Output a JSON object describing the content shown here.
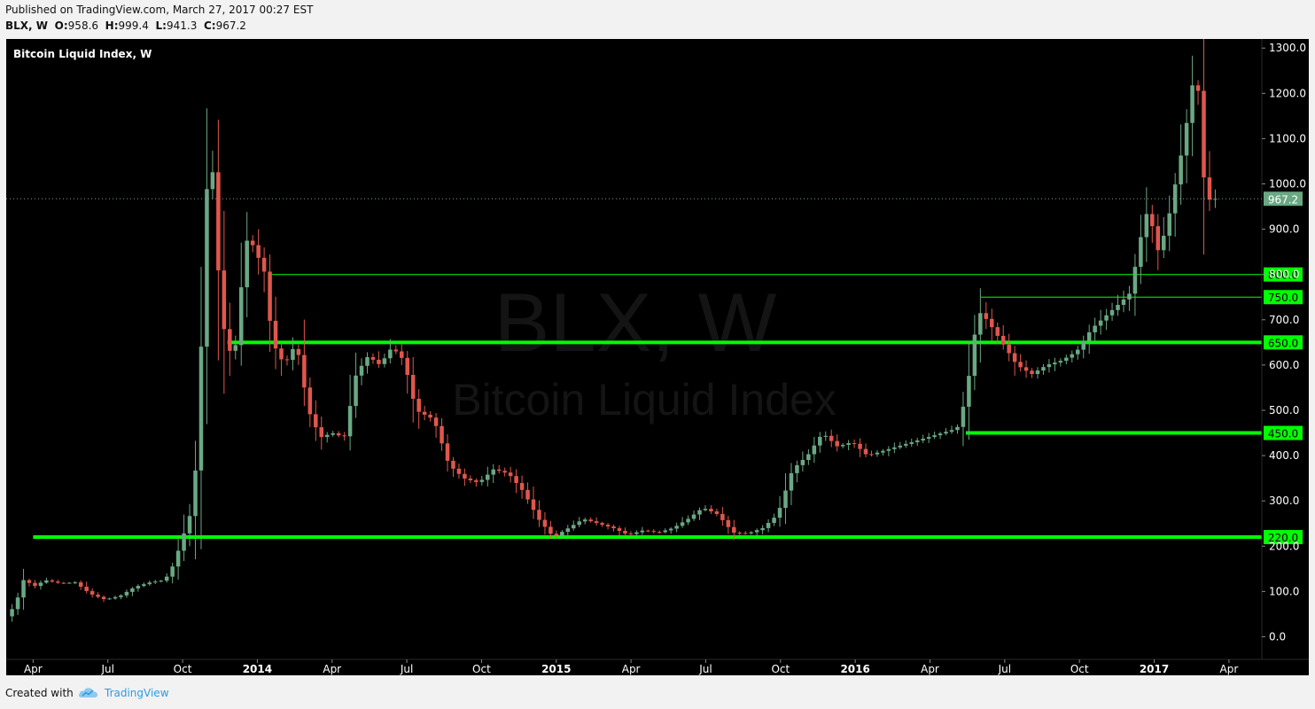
{
  "header": {
    "published": "Published on TradingView.com, March 27, 2017 00:27 EST",
    "symbol": "BLX, W",
    "o_label": "O:",
    "o_value": "958.6",
    "h_label": "H:",
    "h_value": "999.4",
    "l_label": "L:",
    "l_value": "941.3",
    "c_label": "C:",
    "c_value": "967.2"
  },
  "footer": {
    "created_with": "Created with",
    "brand": "TradingView",
    "logo_icon": "tradingview-cloud-icon"
  },
  "colors": {
    "background": "#000000",
    "up": "#6aa884",
    "down": "#e0564d",
    "level": "#00ff00",
    "level_label_bg": "#00ff00",
    "last_price_bg": "#6aa884",
    "axis_text": "#ffffff"
  },
  "chart_data": {
    "type": "candlestick",
    "title": "Bitcoin Liquid Index, W",
    "watermark_symbol": "BLX, W",
    "watermark_name": "Bitcoin Liquid Index",
    "last_price": "967.2",
    "ylim": [
      -50,
      1320
    ],
    "y_ticks": [
      "0.0",
      "100.0",
      "200.0",
      "300.0",
      "400.0",
      "500.0",
      "600.0",
      "700.0",
      "800.0",
      "900.0",
      "1000.0",
      "1100.0",
      "1200.0",
      "1300.0"
    ],
    "x_labels": [
      {
        "label": "Apr",
        "t": 2013.25,
        "bold": false
      },
      {
        "label": "Jul",
        "t": 2013.5,
        "bold": false
      },
      {
        "label": "Oct",
        "t": 2013.75,
        "bold": false
      },
      {
        "label": "2014",
        "t": 2014.0,
        "bold": true
      },
      {
        "label": "Apr",
        "t": 2014.25,
        "bold": false
      },
      {
        "label": "Jul",
        "t": 2014.5,
        "bold": false
      },
      {
        "label": "Oct",
        "t": 2014.75,
        "bold": false
      },
      {
        "label": "2015",
        "t": 2015.0,
        "bold": true
      },
      {
        "label": "Apr",
        "t": 2015.25,
        "bold": false
      },
      {
        "label": "Jul",
        "t": 2015.5,
        "bold": false
      },
      {
        "label": "Oct",
        "t": 2015.75,
        "bold": false
      },
      {
        "label": "2016",
        "t": 2016.0,
        "bold": true
      },
      {
        "label": "Apr",
        "t": 2016.25,
        "bold": false
      },
      {
        "label": "Jul",
        "t": 2016.5,
        "bold": false
      },
      {
        "label": "Oct",
        "t": 2016.75,
        "bold": false
      },
      {
        "label": "2017",
        "t": 2017.0,
        "bold": true
      },
      {
        "label": "Apr",
        "t": 2017.25,
        "bold": false
      }
    ],
    "xlim": [
      2013.16,
      2017.36
    ],
    "levels": [
      {
        "price": 220,
        "label": "220.0",
        "from": 2013.25,
        "thick": true
      },
      {
        "price": 450,
        "label": "450.0",
        "from": 2016.37,
        "thick": true
      },
      {
        "price": 650,
        "label": "650.0",
        "from": 2013.9,
        "thick": true
      },
      {
        "price": 750,
        "label": "750.0",
        "from": 2016.42,
        "thick": false
      },
      {
        "price": 800,
        "label": "800.0",
        "from": 2014.04,
        "thick": false
      }
    ],
    "anchors": [
      [
        2013.17,
        45
      ],
      [
        2013.2,
        70
      ],
      [
        2013.23,
        130
      ],
      [
        2013.26,
        110
      ],
      [
        2013.3,
        125
      ],
      [
        2013.35,
        118
      ],
      [
        2013.4,
        120
      ],
      [
        2013.45,
        95
      ],
      [
        2013.5,
        82
      ],
      [
        2013.55,
        90
      ],
      [
        2013.6,
        110
      ],
      [
        2013.65,
        120
      ],
      [
        2013.7,
        125
      ],
      [
        2013.73,
        160
      ],
      [
        2013.76,
        220
      ],
      [
        2013.79,
        280
      ],
      [
        2013.81,
        420
      ],
      [
        2013.83,
        800
      ],
      [
        2013.85,
        1150
      ],
      [
        2013.87,
        900
      ],
      [
        2013.89,
        700
      ],
      [
        2013.91,
        650
      ],
      [
        2013.93,
        600
      ],
      [
        2013.96,
        800
      ],
      [
        2013.98,
        900
      ],
      [
        2014.0,
        850
      ],
      [
        2014.03,
        820
      ],
      [
        2014.06,
        650
      ],
      [
        2014.1,
        600
      ],
      [
        2014.14,
        650
      ],
      [
        2014.18,
        500
      ],
      [
        2014.22,
        440
      ],
      [
        2014.26,
        450
      ],
      [
        2014.3,
        440
      ],
      [
        2014.34,
        580
      ],
      [
        2014.38,
        620
      ],
      [
        2014.42,
        600
      ],
      [
        2014.46,
        640
      ],
      [
        2014.5,
        610
      ],
      [
        2014.54,
        500
      ],
      [
        2014.6,
        480
      ],
      [
        2014.65,
        380
      ],
      [
        2014.7,
        350
      ],
      [
        2014.75,
        340
      ],
      [
        2014.8,
        370
      ],
      [
        2014.85,
        360
      ],
      [
        2014.9,
        320
      ],
      [
        2014.95,
        260
      ],
      [
        2015.0,
        220
      ],
      [
        2015.05,
        240
      ],
      [
        2015.1,
        260
      ],
      [
        2015.15,
        250
      ],
      [
        2015.2,
        240
      ],
      [
        2015.25,
        225
      ],
      [
        2015.3,
        235
      ],
      [
        2015.35,
        230
      ],
      [
        2015.4,
        240
      ],
      [
        2015.45,
        260
      ],
      [
        2015.5,
        285
      ],
      [
        2015.55,
        270
      ],
      [
        2015.6,
        230
      ],
      [
        2015.65,
        228
      ],
      [
        2015.7,
        240
      ],
      [
        2015.75,
        270
      ],
      [
        2015.8,
        370
      ],
      [
        2015.85,
        400
      ],
      [
        2015.9,
        450
      ],
      [
        2015.95,
        420
      ],
      [
        2016.0,
        430
      ],
      [
        2016.05,
        400
      ],
      [
        2016.1,
        410
      ],
      [
        2016.15,
        420
      ],
      [
        2016.2,
        430
      ],
      [
        2016.25,
        440
      ],
      [
        2016.3,
        450
      ],
      [
        2016.35,
        460
      ],
      [
        2016.38,
        530
      ],
      [
        2016.42,
        720
      ],
      [
        2016.45,
        700
      ],
      [
        2016.5,
        650
      ],
      [
        2016.55,
        600
      ],
      [
        2016.6,
        580
      ],
      [
        2016.65,
        600
      ],
      [
        2016.7,
        610
      ],
      [
        2016.75,
        630
      ],
      [
        2016.8,
        680
      ],
      [
        2016.85,
        710
      ],
      [
        2016.9,
        740
      ],
      [
        2016.93,
        760
      ],
      [
        2016.96,
        870
      ],
      [
        2016.99,
        950
      ],
      [
        2017.02,
        850
      ],
      [
        2017.05,
        900
      ],
      [
        2017.08,
        1000
      ],
      [
        2017.11,
        1100
      ],
      [
        2017.14,
        1230
      ],
      [
        2017.16,
        1200
      ],
      [
        2017.18,
        960
      ],
      [
        2017.2,
        967
      ]
    ]
  }
}
